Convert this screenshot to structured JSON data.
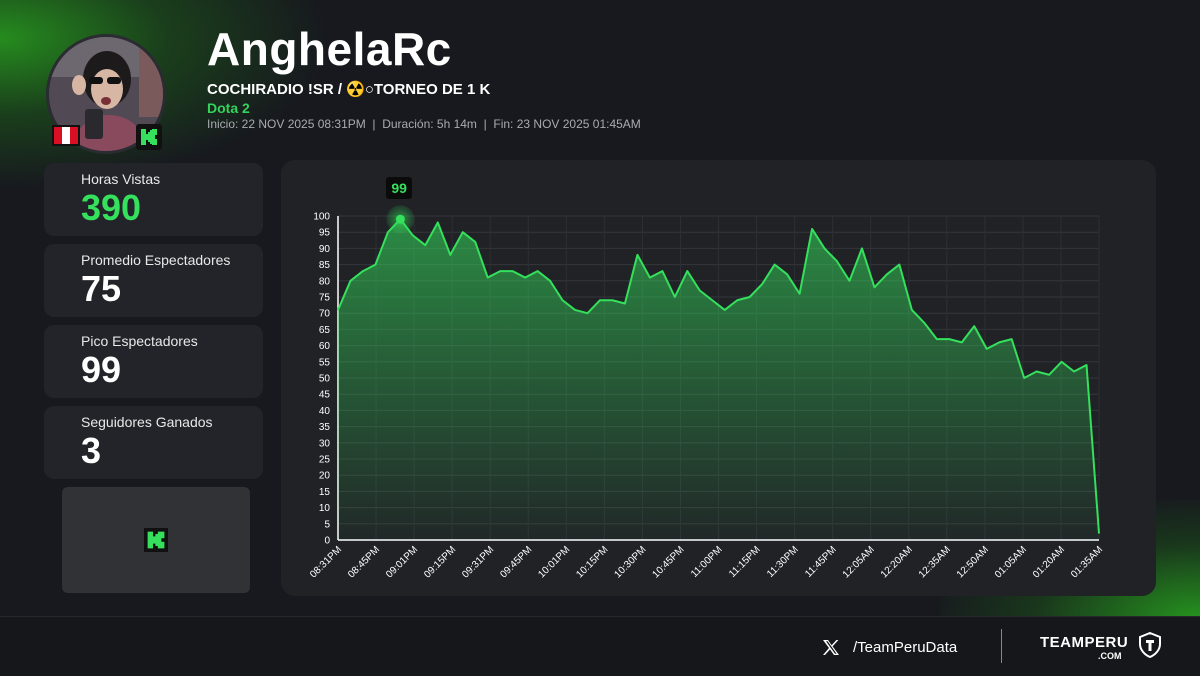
{
  "header": {
    "streamer": "AnghelaRc",
    "stream_title": "COCHIRADIO !SR / ☢️○TORNEO DE 1 K",
    "game": "Dota 2",
    "meta": "Inicio: 22 NOV 2025 08:31PM  |  Duración: 5h 14m  |  Fin: 23 NOV 2025 01:45AM"
  },
  "stats": [
    {
      "label": "Horas Vistas",
      "value": "390",
      "highlight": true
    },
    {
      "label": "Promedio Espectadores",
      "value": "75",
      "highlight": false
    },
    {
      "label": "Pico Espectadores",
      "value": "99",
      "highlight": false
    },
    {
      "label": "Seguidores Ganados",
      "value": "3",
      "highlight": false
    }
  ],
  "platform_icon": "kick-logo-icon",
  "country_icon": "peru-flag-icon",
  "footer": {
    "social_icon": "x-logo-icon",
    "handle": "/TeamPeruData",
    "brand": "TEAMPERU",
    "brand_sub": ".COM",
    "brand_icon": "shield-icon"
  },
  "colors": {
    "accent_green": "#34e05c",
    "background": "#17191e",
    "card": "#22242a",
    "chart_panel": "#202226"
  },
  "chart_data": {
    "type": "area",
    "title": "",
    "xlabel": "",
    "ylabel": "",
    "ylim": [
      0,
      100
    ],
    "yticks": [
      0,
      5,
      10,
      15,
      20,
      25,
      30,
      35,
      40,
      45,
      50,
      55,
      60,
      65,
      70,
      75,
      80,
      85,
      90,
      95,
      100
    ],
    "xticks": [
      "08:31PM",
      "08:45PM",
      "09:01PM",
      "09:15PM",
      "09:31PM",
      "09:45PM",
      "10:01PM",
      "10:15PM",
      "10:30PM",
      "10:45PM",
      "11:00PM",
      "11:15PM",
      "11:30PM",
      "11:45PM",
      "12:05AM",
      "12:20AM",
      "12:35AM",
      "12:50AM",
      "01:05AM",
      "01:20AM",
      "01:35AM"
    ],
    "values": [
      71,
      80,
      83,
      85,
      95,
      99,
      94,
      91,
      98,
      88,
      95,
      92,
      81,
      83,
      83,
      81,
      83,
      80,
      74,
      71,
      70,
      74,
      74,
      73,
      88,
      81,
      83,
      75,
      83,
      77,
      74,
      71,
      74,
      75,
      79,
      85,
      82,
      76,
      96,
      90,
      86,
      80,
      90,
      78,
      82,
      85,
      71,
      67,
      62,
      62,
      61,
      66,
      59,
      61,
      62,
      50,
      52,
      51,
      55,
      52,
      54,
      2
    ],
    "peak": {
      "value": 99,
      "index": 5,
      "label": "99"
    },
    "grid": true,
    "legend": "none"
  }
}
